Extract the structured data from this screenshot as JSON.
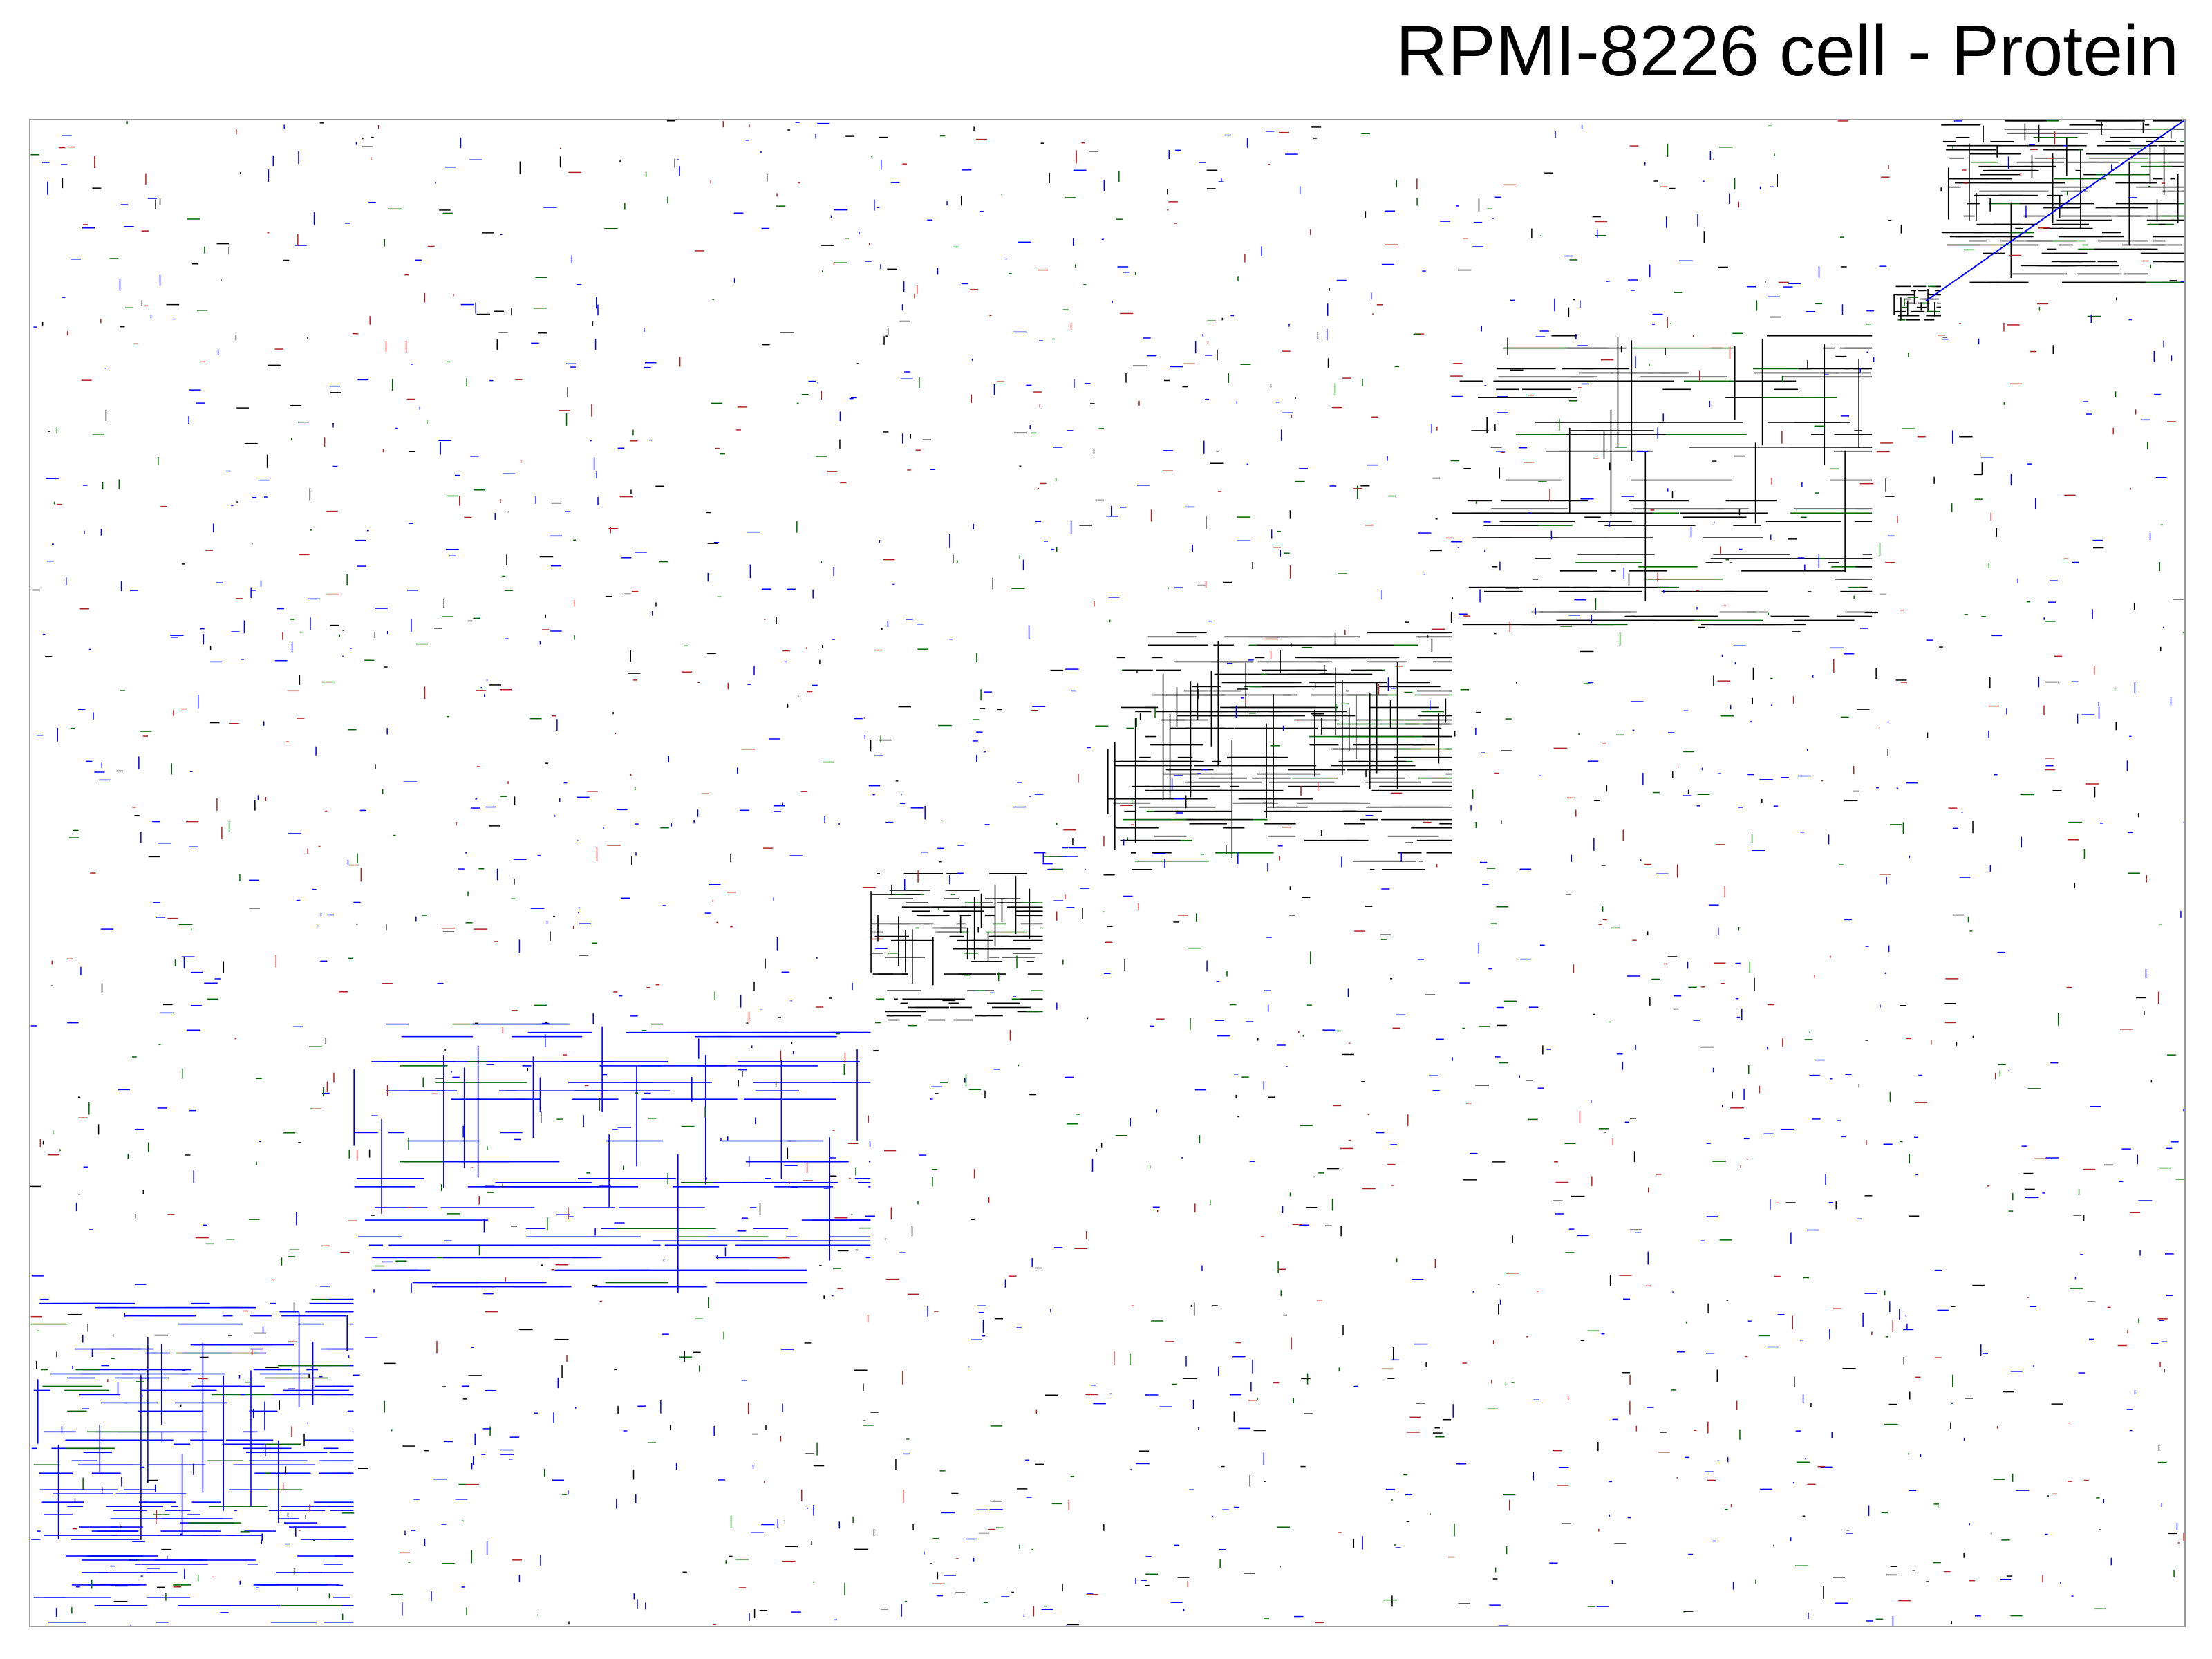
{
  "chart_data": {
    "type": "heatmap",
    "title": "RPMI-8226 cell - Protein",
    "xlabel": "",
    "ylabel": "",
    "grid": false,
    "legend": "none",
    "colors": {
      "black": "#000000",
      "blue": "#0000ff",
      "green": "#006400",
      "red": "#b22222",
      "frame": "#9a9a9a"
    },
    "diagonal_blocks": [
      {
        "label": "block-1",
        "row_range": [
          0.78,
          1.0
        ],
        "col_range": [
          0.0,
          0.15
        ],
        "density": 0.55,
        "color": "blue"
      },
      {
        "label": "block-2",
        "row_range": [
          0.6,
          0.78
        ],
        "col_range": [
          0.15,
          0.39
        ],
        "density": 0.35,
        "color": "blue"
      },
      {
        "label": "block-3",
        "row_range": [
          0.5,
          0.6
        ],
        "col_range": [
          0.39,
          0.47
        ],
        "density": 0.7,
        "color": "black"
      },
      {
        "label": "block-4",
        "row_range": [
          0.48,
          0.5
        ],
        "col_range": [
          0.47,
          0.49
        ],
        "density": 0.4,
        "color": "blue"
      },
      {
        "label": "block-5",
        "row_range": [
          0.34,
          0.5
        ],
        "col_range": [
          0.5,
          0.66
        ],
        "density": 0.7,
        "color": "black"
      },
      {
        "label": "block-6",
        "row_range": [
          0.14,
          0.34
        ],
        "col_range": [
          0.66,
          0.855
        ],
        "density": 0.35,
        "color": "black"
      },
      {
        "label": "block-7",
        "row_range": [
          0.11,
          0.135
        ],
        "col_range": [
          0.865,
          0.887
        ],
        "density": 0.85,
        "color": "black"
      },
      {
        "label": "block-8",
        "row_range": [
          0.0,
          0.11
        ],
        "col_range": [
          0.887,
          1.0
        ],
        "density": 0.9,
        "color": "black"
      }
    ]
  }
}
